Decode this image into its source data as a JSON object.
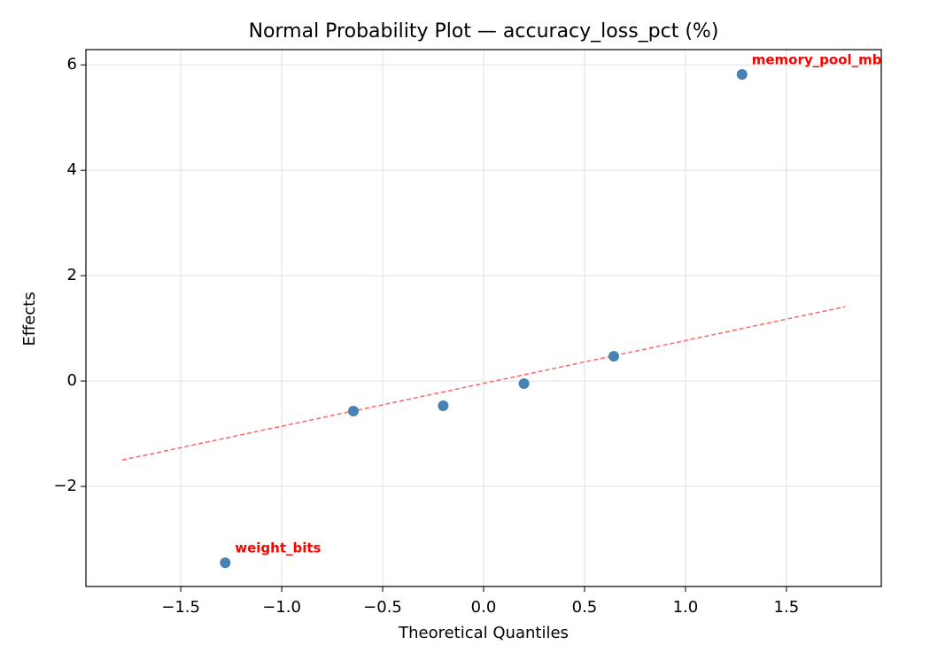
{
  "chart_data": {
    "type": "scatter",
    "title": "Normal Probability Plot — accuracy_loss_pct (%)",
    "x_label": "Theoretical Quantiles",
    "y_label": "Effects",
    "x": [
      -1.28,
      -0.645,
      -0.2,
      0.2,
      0.645,
      1.28
    ],
    "values": [
      -3.45,
      -0.57,
      -0.47,
      -0.05,
      0.47,
      5.82
    ],
    "point_labels": [
      "weight_bits",
      null,
      null,
      null,
      null,
      "memory_pool_mb"
    ],
    "color": "#4682b4",
    "label_color": "#ff0000",
    "reference_line": {
      "x": [
        -1.79,
        1.79
      ],
      "y": [
        -1.5,
        1.41
      ],
      "color": "#ff6666"
    },
    "xlim": [
      -1.97,
      1.97
    ],
    "ylim": [
      -3.9,
      6.29
    ],
    "xticks": [
      {
        "value": -1.5,
        "label": "−1.5"
      },
      {
        "value": -1.0,
        "label": "−1.0"
      },
      {
        "value": -0.5,
        "label": "−0.5"
      },
      {
        "value": 0,
        "label": "0.0"
      },
      {
        "value": 0.5,
        "label": "0.5"
      },
      {
        "value": 1.0,
        "label": "1.0"
      },
      {
        "value": 1.5,
        "label": "1.5"
      }
    ],
    "yticks": [
      {
        "value": -2,
        "label": "−2"
      },
      0,
      2,
      4,
      6
    ],
    "grid": true
  }
}
